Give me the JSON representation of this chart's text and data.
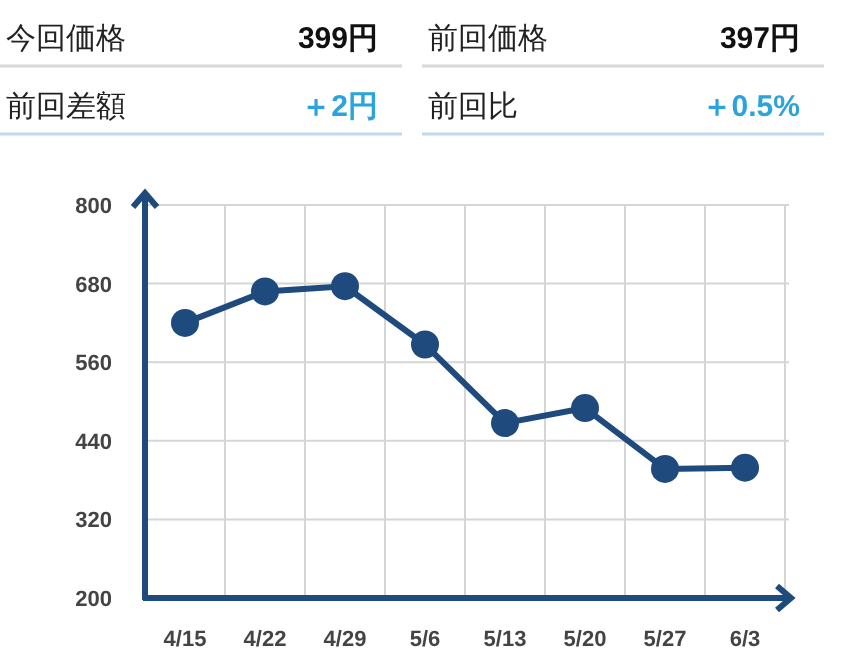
{
  "chart_data": [
    {
      "type": "other",
      "annotations": [
        "今回価格",
        "399円",
        "前回価格",
        "397円",
        "前回差額",
        "＋2円",
        "前回比",
        "＋0.5%"
      ]
    },
    {
      "type": "line",
      "categories": [
        "4/15",
        "4/22",
        "4/29",
        "5/6",
        "5/13",
        "5/20",
        "5/27",
        "6/3"
      ],
      "series": [
        {
          "color": "#1f4a7e",
          "values": [
            620,
            668,
            676,
            587,
            467,
            490,
            397,
            399
          ]
        }
      ],
      "ylim": [
        200,
        800
      ],
      "yticks": [
        200,
        320,
        440,
        560,
        680,
        800
      ],
      "grid": true,
      "marker": "circle",
      "line_style": "solid"
    }
  ]
}
